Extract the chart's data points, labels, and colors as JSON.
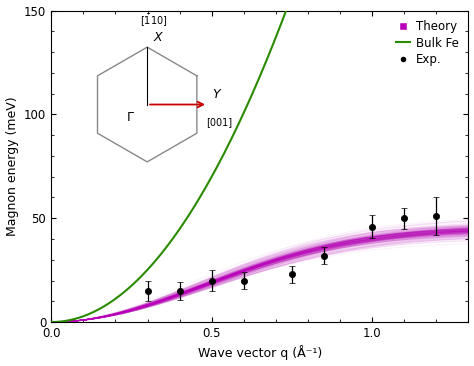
{
  "title": "",
  "xlabel": "Wave vector q (Å⁻¹)",
  "ylabel": "Magnon energy (meV)",
  "xlim": [
    0.0,
    1.3
  ],
  "ylim": [
    0,
    150
  ],
  "yticks": [
    0,
    50,
    100,
    150
  ],
  "xticks": [
    0.0,
    0.5,
    1.0
  ],
  "bulk_fe_D": 280,
  "bulk_fe_color": "#2a8a00",
  "theory_color": "#bb00bb",
  "theory_A": 45.0,
  "theory_k": 2.2,
  "theory_A_spread": 2.5,
  "theory_k_spread": 0.15,
  "exp_color": "#000000",
  "exp_points": [
    [
      0.3,
      15.0,
      5.0
    ],
    [
      0.4,
      15.0,
      4.5
    ],
    [
      0.5,
      20.0,
      5.0
    ],
    [
      0.6,
      20.0,
      4.0
    ],
    [
      0.75,
      23.0,
      4.0
    ],
    [
      0.85,
      32.0,
      4.0
    ],
    [
      1.0,
      46.0,
      5.5
    ],
    [
      1.1,
      50.0,
      5.0
    ],
    [
      1.2,
      51.0,
      9.0
    ]
  ],
  "background_color": "#ffffff",
  "inset_hex_color": "#888888",
  "inset_arrow_color": "#cc0000",
  "inset_axis_color": "#000000"
}
